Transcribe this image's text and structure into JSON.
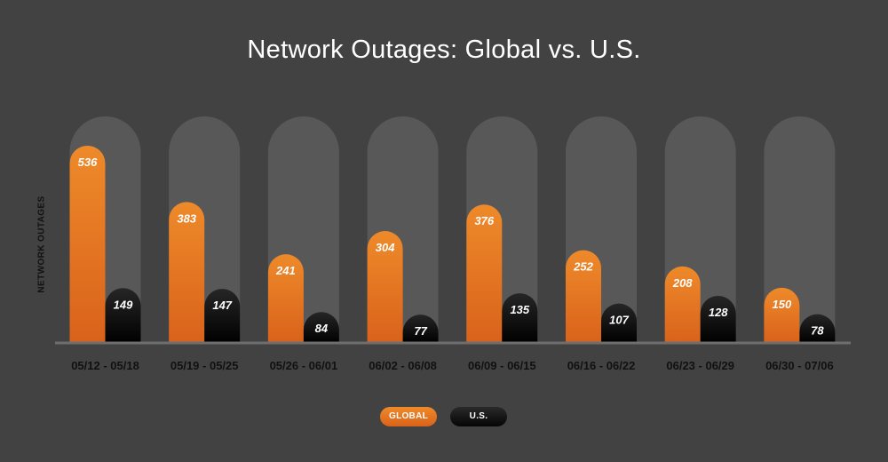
{
  "title": "Network Outages: Global vs. U.S.",
  "chart_data": {
    "type": "bar",
    "title": "Network Outages: Global vs. U.S.",
    "ylabel": "NETWORK OUTAGES",
    "xlabel": "",
    "categories": [
      "05/12 - 05/18",
      "05/19 - 05/25",
      "05/26 - 06/01",
      "06/02 - 06/08",
      "06/09 - 06/15",
      "06/16 - 06/22",
      "06/23 - 06/29",
      "06/30 - 07/06"
    ],
    "series": [
      {
        "name": "GLOBAL",
        "values": [
          536,
          383,
          241,
          304,
          376,
          252,
          208,
          150
        ],
        "color": "#e8781f"
      },
      {
        "name": "U.S.",
        "values": [
          149,
          147,
          84,
          77,
          135,
          107,
          128,
          78
        ],
        "color": "#0d0d0d"
      }
    ],
    "ylim": [
      0,
      700
    ],
    "grid": false,
    "legend_position": "bottom-center",
    "background_color": "#424242",
    "track_color": "#585858"
  },
  "legend": {
    "global_label": "GLOBAL",
    "us_label": "U.S."
  }
}
